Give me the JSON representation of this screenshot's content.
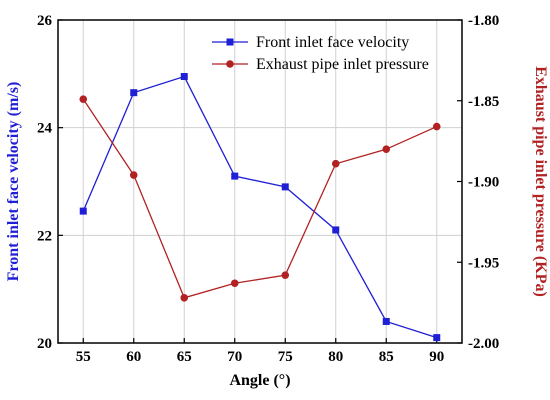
{
  "chart_data": {
    "type": "line",
    "x": [
      55,
      60,
      65,
      70,
      75,
      80,
      85,
      90
    ],
    "xlabel": "Angle (°)",
    "xlim": [
      52.5,
      92.5
    ],
    "xticks": [
      55,
      60,
      65,
      70,
      75,
      80,
      85,
      90
    ],
    "y_left": {
      "label": "Front inlet face velocity (m/s)",
      "lim": [
        20,
        26
      ],
      "ticks": [
        20,
        22,
        24,
        26
      ],
      "color": "#1f1fd6"
    },
    "y_right": {
      "label": "Exhaust pipe inlet pressure (KPa)",
      "lim": [
        -2.0,
        -1.8
      ],
      "ticks": [
        -2.0,
        -1.95,
        -1.9,
        -1.85,
        -1.8
      ],
      "tick_labels": [
        "-2.00",
        "-1.95",
        "-1.90",
        "-1.85",
        "-1.80"
      ],
      "color": "#b22222"
    },
    "grid": true,
    "legend_position": "top-right",
    "series": [
      {
        "name": "Front inlet face velocity",
        "axis": "left",
        "marker": "square",
        "color": "#1f1fd6",
        "values": [
          22.45,
          24.65,
          24.95,
          23.1,
          22.9,
          22.1,
          20.4,
          20.1
        ]
      },
      {
        "name": "Exhaust pipe inlet pressure",
        "axis": "right",
        "marker": "circle",
        "color": "#b22222",
        "values": [
          -1.849,
          -1.896,
          -1.972,
          -1.963,
          -1.958,
          -1.889,
          -1.88,
          -1.866
        ]
      }
    ]
  }
}
